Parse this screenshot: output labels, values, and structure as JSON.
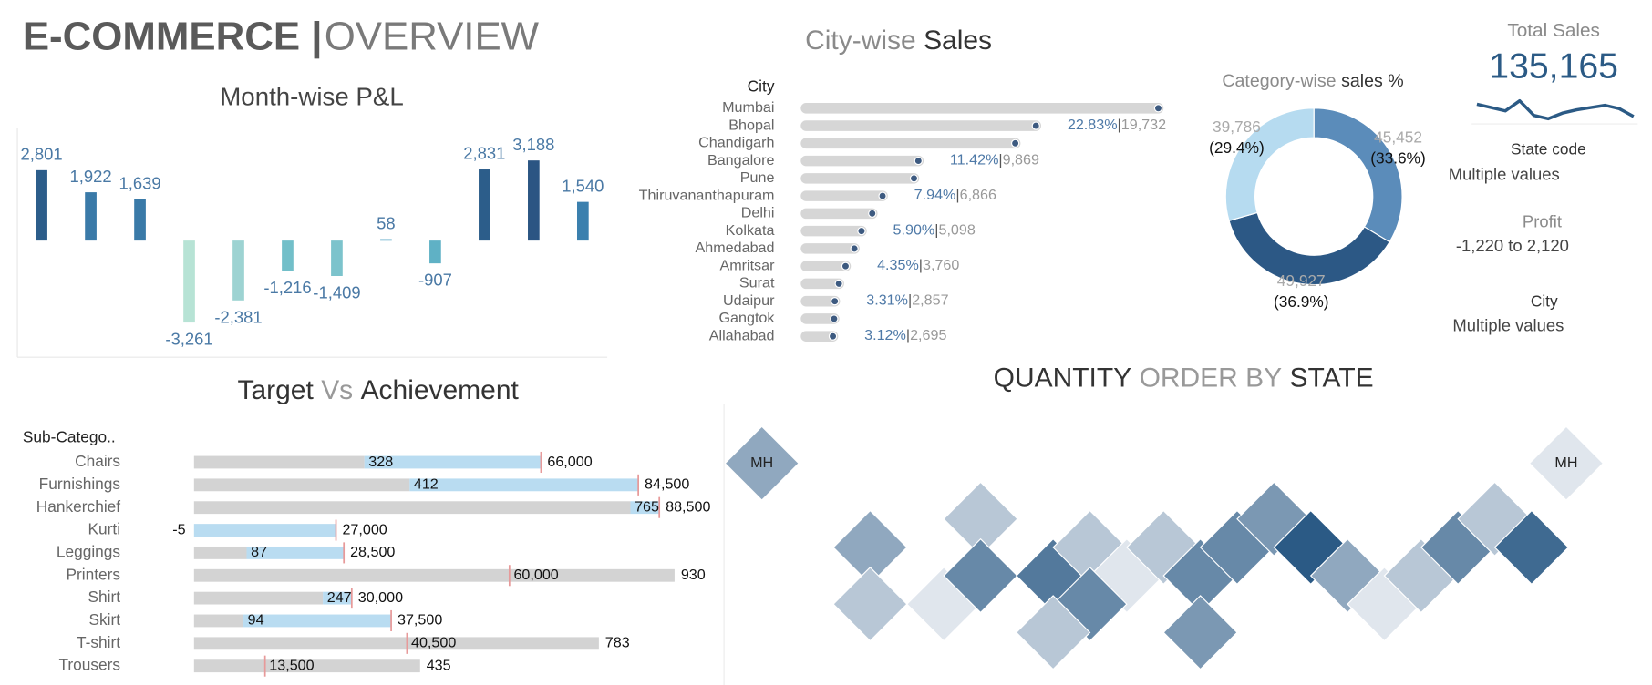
{
  "header": {
    "title": [
      "E-COMMERCE |",
      "OVERVIEW"
    ]
  },
  "kpi": {
    "label": "Total Sales",
    "value": "135,165"
  },
  "filters": [
    {
      "label": "State code",
      "value": "Multiple values"
    },
    {
      "label": "Profit",
      "value": "-1,220 to 2,120"
    },
    {
      "label": "City",
      "value": "Multiple values"
    }
  ],
  "chart_data": [
    {
      "type": "bar",
      "title": "Month-wise P&L",
      "values": [
        2801,
        1922,
        1639,
        -3261,
        -2381,
        -1216,
        -1409,
        58,
        -907,
        2831,
        3188,
        1540
      ],
      "value_labels": [
        "2,801",
        "1,922",
        "1,639",
        "-3,261",
        "-2,381",
        "-1,216",
        "-1,409",
        "58",
        "-907",
        "2,831",
        "3,188",
        "1,540"
      ],
      "colors": [
        "#2c5d8a",
        "#3a7aa8",
        "#3a7aa8",
        "#b7e3d5",
        "#9dd3d2",
        "#72bfc9",
        "#7cc3cc",
        "#5aa8c8",
        "#5fb1c5",
        "#2c5d8a",
        "#2b5583",
        "#3b80ae"
      ]
    },
    {
      "type": "lollipop",
      "title": [
        "City-wise",
        "Sales"
      ],
      "axis_label": "City",
      "categories": [
        "Mumbai",
        "Bhopal",
        "Chandigarh",
        "Bangalore",
        "Pune",
        "Thiruvananthapuram",
        "Delhi",
        "Kolkata",
        "Ahmedabad",
        "Amritsar",
        "Surat",
        "Udaipur",
        "Gangtok",
        "Allahabad"
      ],
      "values": [
        30000,
        19732,
        18000,
        9869,
        9500,
        6866,
        6000,
        5098,
        4500,
        3760,
        3200,
        2857,
        2800,
        2695
      ],
      "shares": [
        null,
        22.83,
        null,
        11.42,
        null,
        7.94,
        null,
        5.9,
        null,
        4.35,
        null,
        3.31,
        null,
        3.12
      ],
      "share_labels": [
        null,
        "22.83%",
        null,
        "11.42%",
        null,
        "7.94%",
        null,
        "5.90%",
        null,
        "4.35%",
        null,
        "3.31%",
        null,
        "3.12%"
      ],
      "value_labels": [
        null,
        "19,732",
        null,
        "9,869",
        null,
        "6,866",
        null,
        "5,098",
        null,
        "3,760",
        null,
        "2,857",
        null,
        "2,695"
      ],
      "separator": "|",
      "color": "#3d5a80"
    },
    {
      "type": "donut",
      "title": [
        "Category-wise",
        "sales %"
      ],
      "values": [
        45452,
        49927,
        39786
      ],
      "value_labels": [
        "45,452",
        "49,927",
        "39,786"
      ],
      "shares": [
        33.6,
        36.9,
        29.4
      ],
      "share_labels": [
        "(33.6%)",
        "(36.9%)",
        "(29.4%)"
      ],
      "colors": [
        "#5b8cba",
        "#2c5885",
        "#b6dbf0"
      ]
    },
    {
      "type": "bullet",
      "title": [
        "Target",
        "Vs",
        "Achievement"
      ],
      "axis_label": "Sub-Catego..",
      "categories": [
        "Chairs",
        "Furnishings",
        "Hankerchief",
        "Kurti",
        "Leggings",
        "Printers",
        "Shirt",
        "Skirt",
        "T-shirt",
        "Trousers"
      ],
      "sales": [
        32400,
        41000,
        83000,
        0,
        10000,
        91400,
        24500,
        9400,
        77000,
        43000
      ],
      "targets": [
        66000,
        84500,
        88500,
        27000,
        28500,
        60000,
        30000,
        37500,
        40500,
        13500
      ],
      "target_labels": [
        "66,000",
        "84,500",
        "88,500",
        "27,000",
        "28,500",
        "60,000",
        "30,000",
        "37,500",
        "40,500",
        "13,500"
      ],
      "profits": [
        328,
        412,
        765,
        -5,
        87,
        930,
        247,
        94,
        783,
        435
      ],
      "colors": {
        "sales": "#d3d3d3",
        "gap": "#b9dcf1",
        "target": "#e79a9a"
      }
    },
    {
      "type": "tilemap",
      "title": [
        "QUANTITY",
        "ORDER BY",
        "STATE"
      ],
      "values": [
        5,
        3,
        5,
        3,
        1,
        7,
        8,
        3,
        1,
        7,
        3,
        3,
        7,
        7,
        6,
        10,
        6,
        5,
        1,
        3,
        7,
        3,
        9,
        1
      ],
      "labels": [
        "MH",
        null,
        null,
        null,
        null,
        null,
        null,
        null,
        null,
        null,
        null,
        null,
        null,
        null,
        null,
        null,
        null,
        null,
        null,
        null,
        null,
        null,
        null,
        "MH"
      ],
      "color_range": [
        "#e0e6ed",
        "#2b5a85"
      ]
    },
    {
      "type": "line",
      "values": [
        60,
        57,
        54,
        63,
        50,
        47,
        52,
        55,
        57,
        59,
        56,
        49
      ],
      "color": "#2b5a85"
    }
  ]
}
